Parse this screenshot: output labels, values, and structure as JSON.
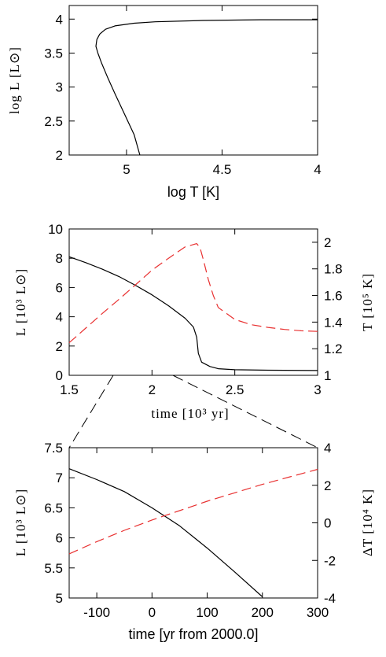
{
  "chart_data": [
    {
      "type": "line",
      "xlabel": "log T [K]",
      "ylabel": "log L [L⊙]",
      "xlim": [
        5.3,
        4.0
      ],
      "ylim": [
        2,
        4.2
      ],
      "x_ticks": [
        5,
        4.5,
        4
      ],
      "x_tick_labels": [
        "5",
        "4.5",
        "4"
      ],
      "y_ticks": [
        2,
        2.5,
        3,
        3.5,
        4
      ],
      "y_tick_labels": [
        "2",
        "2.5",
        "3",
        "3.5",
        "4"
      ],
      "grid": false,
      "series": [
        {
          "color": "#000000",
          "dash": "solid",
          "x": [
            4.93,
            4.96,
            5.01,
            5.06,
            5.1,
            5.13,
            5.15,
            5.16,
            5.155,
            5.14,
            5.11,
            5.06,
            4.96,
            4.85,
            4.6,
            4.3,
            4.0
          ],
          "y": [
            2.0,
            2.3,
            2.6,
            2.9,
            3.15,
            3.35,
            3.5,
            3.6,
            3.7,
            3.78,
            3.85,
            3.9,
            3.94,
            3.96,
            3.98,
            3.99,
            3.99
          ]
        }
      ]
    },
    {
      "type": "line",
      "xlabel": "time [10³ yr]",
      "ylabel": "L [10³ L⊙]",
      "ylabel_right": "T [10⁵ K]",
      "xlim": [
        1.5,
        3
      ],
      "ylim": [
        0,
        10
      ],
      "ylim_right": [
        1,
        2.1
      ],
      "x_ticks": [
        1.5,
        2,
        2.5,
        3
      ],
      "x_tick_labels": [
        "1.5",
        "2",
        "2.5",
        "3"
      ],
      "y_ticks": [
        0,
        2,
        4,
        6,
        8,
        10
      ],
      "y_tick_labels": [
        "0",
        "2",
        "4",
        "6",
        "8",
        "10"
      ],
      "y_right_ticks": [
        1,
        1.2,
        1.4,
        1.6,
        1.8,
        2
      ],
      "y_right_tick_labels": [
        "1",
        "1.2",
        "1.4",
        "1.6",
        "1.8",
        "2"
      ],
      "grid": false,
      "series": [
        {
          "color": "#000000",
          "dash": "solid",
          "axis": "left",
          "x": [
            1.5,
            1.6,
            1.7,
            1.8,
            1.9,
            2.0,
            2.1,
            2.2,
            2.25,
            2.27,
            2.28,
            2.3,
            2.35,
            2.4,
            2.5,
            2.7,
            3.0
          ],
          "y": [
            8.1,
            7.7,
            7.25,
            6.75,
            6.15,
            5.5,
            4.75,
            3.9,
            3.3,
            2.6,
            1.5,
            0.9,
            0.6,
            0.45,
            0.38,
            0.35,
            0.33
          ]
        },
        {
          "color": "#e83030",
          "dash": "dashed",
          "axis": "right",
          "x": [
            1.5,
            1.6,
            1.7,
            1.8,
            1.9,
            2.0,
            2.1,
            2.2,
            2.27,
            2.29,
            2.31,
            2.34,
            2.37,
            2.4,
            2.5,
            2.6,
            2.7,
            2.8,
            2.9,
            3.0
          ],
          "y": [
            1.245,
            1.355,
            1.465,
            1.57,
            1.68,
            1.79,
            1.88,
            1.965,
            1.99,
            1.96,
            1.87,
            1.72,
            1.6,
            1.51,
            1.42,
            1.38,
            1.36,
            1.345,
            1.335,
            1.33
          ]
        }
      ]
    },
    {
      "type": "line",
      "xlabel": "time [yr from 2000.0]",
      "ylabel": "L [10³ L⊙]",
      "ylabel_right": "ΔT [10⁴ K]",
      "xlim": [
        -150,
        300
      ],
      "ylim": [
        5,
        7.5
      ],
      "ylim_right": [
        -4,
        4
      ],
      "x_ticks": [
        -100,
        0,
        100,
        200,
        300
      ],
      "x_tick_labels": [
        "-100",
        "0",
        "100",
        "200",
        "300"
      ],
      "y_ticks": [
        5,
        5.5,
        6,
        6.5,
        7,
        7.5
      ],
      "y_tick_labels": [
        "5",
        "5.5",
        "6",
        "6.5",
        "7",
        "7.5"
      ],
      "y_right_ticks": [
        -4,
        -2,
        0,
        2,
        4
      ],
      "y_right_tick_labels": [
        "-4",
        "-2",
        "0",
        "2",
        "4"
      ],
      "grid": false,
      "series": [
        {
          "color": "#000000",
          "dash": "solid",
          "axis": "left",
          "x": [
            -150,
            -100,
            -50,
            0,
            50,
            100,
            150,
            200
          ],
          "y": [
            7.15,
            6.97,
            6.77,
            6.5,
            6.2,
            5.83,
            5.43,
            5.02
          ]
        },
        {
          "color": "#e83030",
          "dash": "dashed",
          "axis": "right",
          "x": [
            -150,
            -100,
            -50,
            0,
            50,
            100,
            150,
            200,
            250,
            300
          ],
          "y": [
            -1.65,
            -1.0,
            -0.4,
            0.15,
            0.65,
            1.15,
            1.6,
            2.05,
            2.45,
            2.85
          ]
        }
      ]
    }
  ]
}
